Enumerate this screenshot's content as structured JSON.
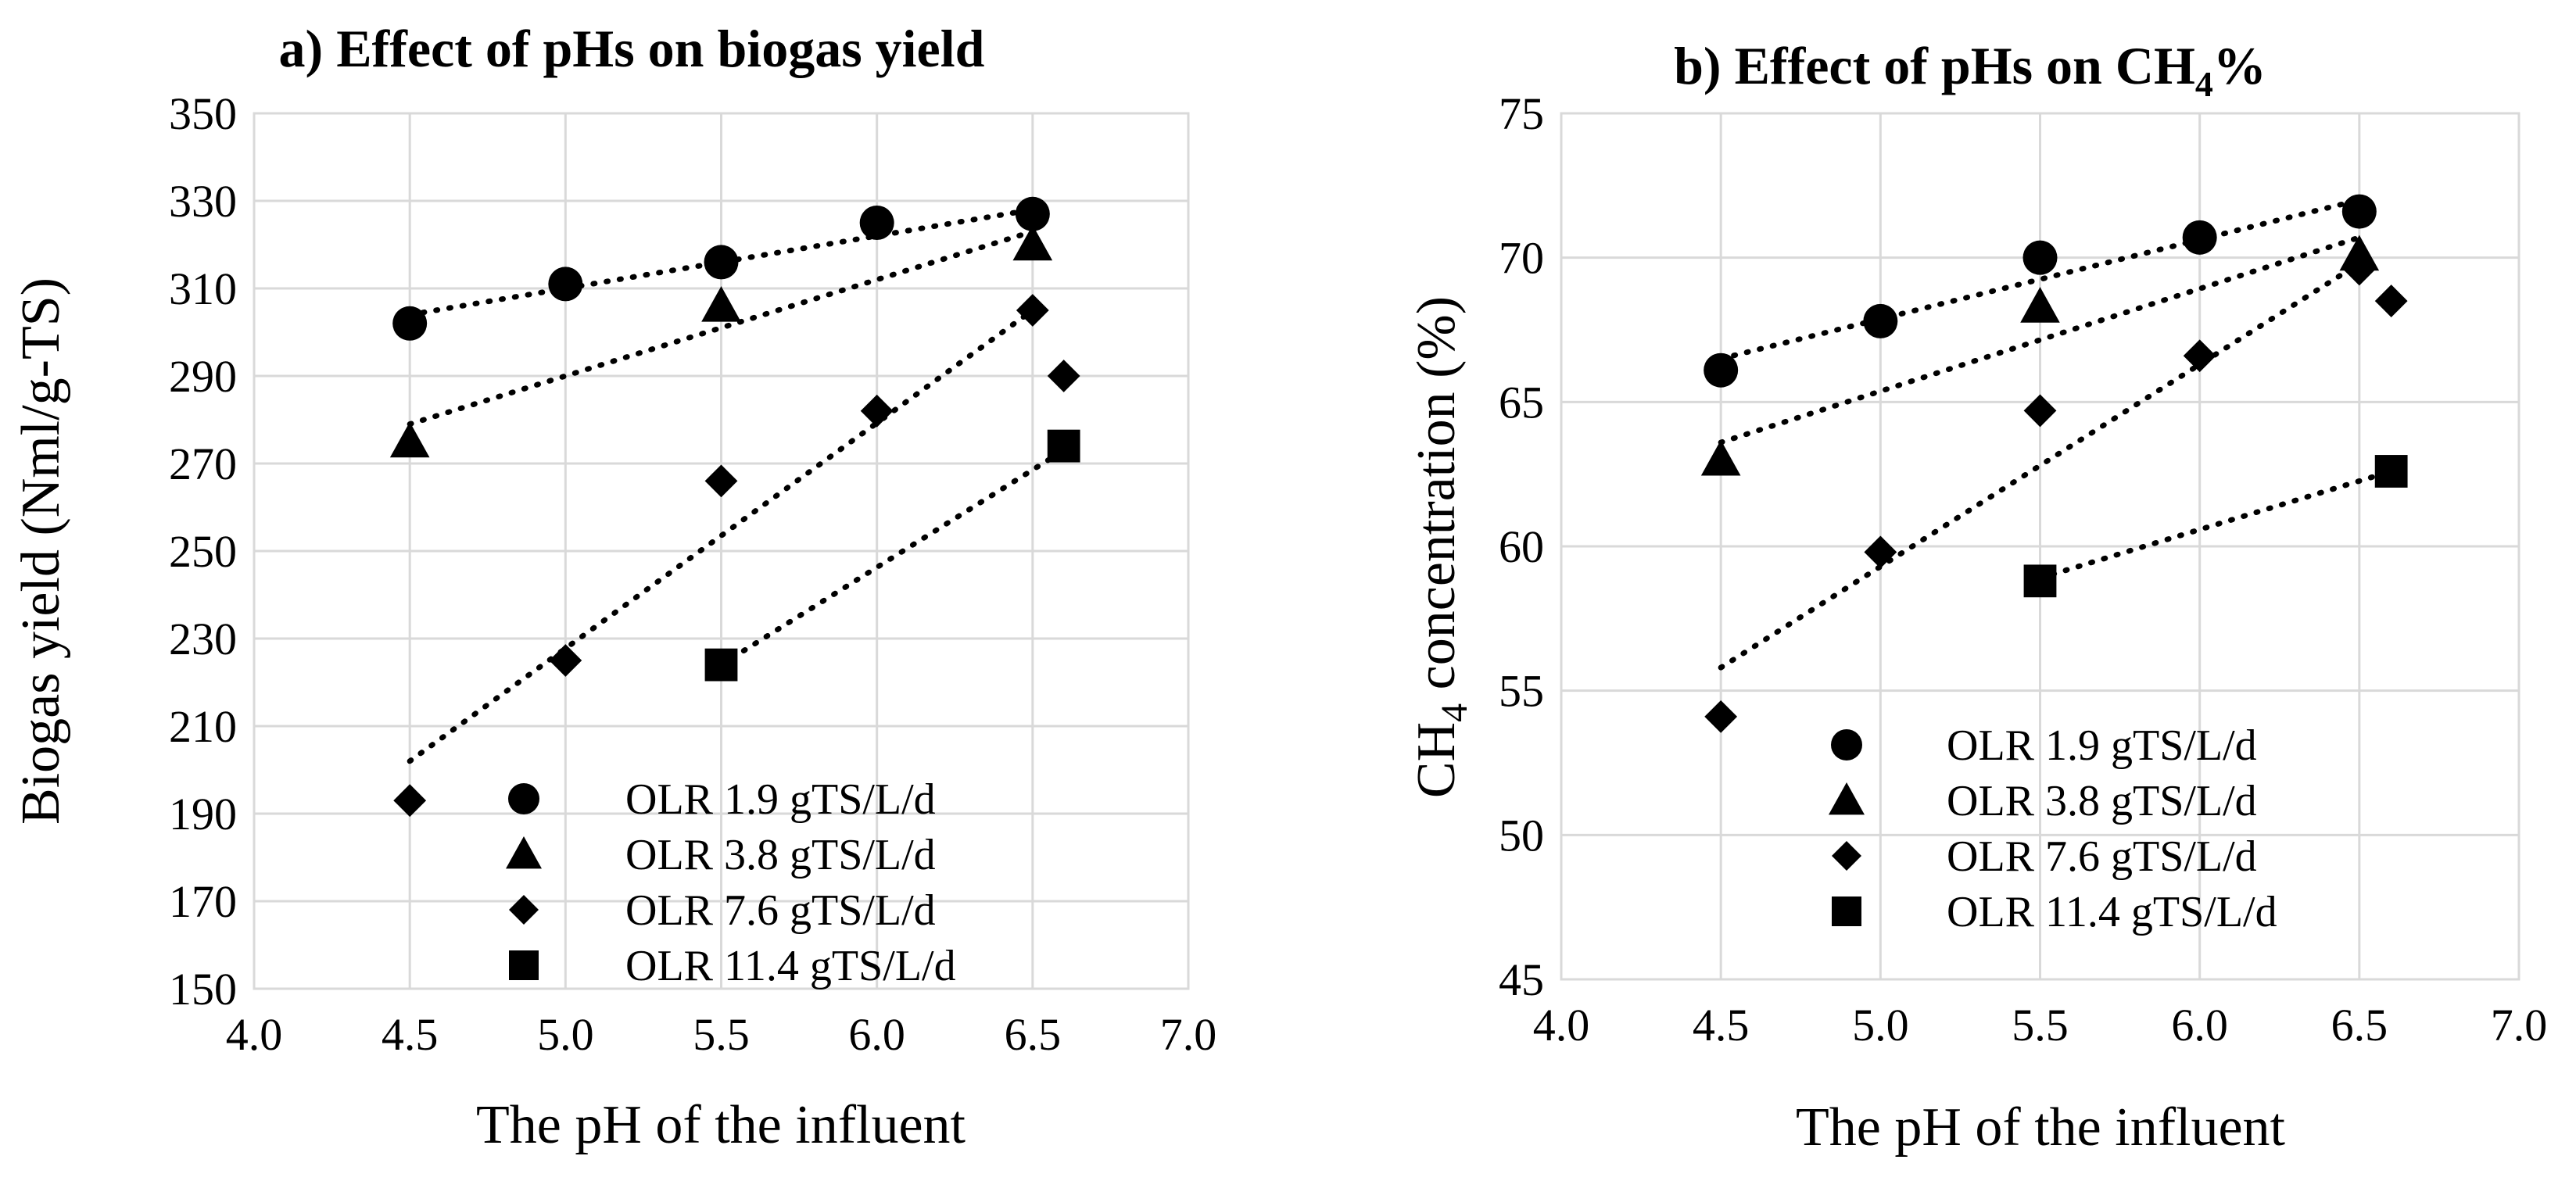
{
  "charts": [
    {
      "id": "a",
      "title_plain": "a) Effect of pHs on biogas yield",
      "xlabel": "The pH of the influent",
      "ylabel": "Biogas yield (Nml/g-TS)",
      "xlim": [
        4.0,
        7.0
      ],
      "ylim": [
        150,
        350
      ],
      "x_ticks": [
        4.0,
        4.5,
        5.0,
        5.5,
        6.0,
        6.5,
        7.0
      ],
      "x_tick_labels": [
        "4.0",
        "4.5",
        "5.0",
        "5.5",
        "6.0",
        "6.5",
        "7.0"
      ],
      "y_ticks": [
        150,
        170,
        190,
        210,
        230,
        250,
        270,
        290,
        310,
        330,
        350
      ],
      "y_tick_labels": [
        "150",
        "170",
        "190",
        "210",
        "230",
        "250",
        "270",
        "290",
        "310",
        "330",
        "350"
      ],
      "legend": [
        "OLR 1.9 gTS/L/d",
        "OLR 3.8 gTS/L/d",
        "OLR 7.6 gTS/L/d",
        "OLR 11.4 gTS/L/d"
      ]
    },
    {
      "id": "b",
      "title_prefix": "b) Effect of pHs on CH",
      "title_sub": "4",
      "title_suffix": "%",
      "xlabel": "The pH of the influent",
      "ylabel_prefix": "CH",
      "ylabel_sub": "4",
      "ylabel_suffix": " concentration (%)",
      "xlim": [
        4.0,
        7.0
      ],
      "ylim": [
        45,
        75
      ],
      "x_ticks": [
        4.0,
        4.5,
        5.0,
        5.5,
        6.0,
        6.5,
        7.0
      ],
      "x_tick_labels": [
        "4.0",
        "4.5",
        "5.0",
        "5.5",
        "6.0",
        "6.5",
        "7.0"
      ],
      "y_ticks": [
        45,
        50,
        55,
        60,
        65,
        70,
        75
      ],
      "y_tick_labels": [
        "45",
        "50",
        "55",
        "60",
        "65",
        "70",
        "75"
      ],
      "legend": [
        "OLR 1.9 gTS/L/d",
        "OLR 3.8 gTS/L/d",
        "OLR 7.6 gTS/L/d",
        "OLR 11.4 gTS/L/d"
      ]
    }
  ],
  "chart_data": [
    {
      "type": "scatter",
      "title": "a) Effect of pHs on biogas yield",
      "xlabel": "The pH of the influent",
      "ylabel": "Biogas yield (Nml/g-TS)",
      "xlim": [
        4.0,
        7.0
      ],
      "ylim": [
        150,
        350
      ],
      "grid": true,
      "legend_position": "bottom-right",
      "trendlines": "linear, dotted",
      "series": [
        {
          "name": "OLR 1.9 gTS/L/d",
          "marker": "circle",
          "x": [
            4.5,
            5.0,
            5.5,
            6.0,
            6.5
          ],
          "y": [
            302,
            311,
            316,
            325,
            327
          ],
          "trend": [
            [
              4.5,
              304
            ],
            [
              6.5,
              328
            ]
          ]
        },
        {
          "name": "OLR 3.8 gTS/L/d",
          "marker": "triangle",
          "x": [
            4.5,
            5.5,
            6.5
          ],
          "y": [
            275,
            306,
            320
          ],
          "trend": [
            [
              4.5,
              279
            ],
            [
              6.5,
              323
            ]
          ]
        },
        {
          "name": "OLR 7.6 gTS/L/d",
          "marker": "diamond",
          "x": [
            4.5,
            5.0,
            5.5,
            6.0,
            6.5,
            6.6
          ],
          "y": [
            193,
            225,
            266,
            282,
            305,
            290
          ],
          "trend": [
            [
              4.5,
              202
            ],
            [
              6.5,
              305
            ]
          ]
        },
        {
          "name": "OLR 11.4 gTS/L/d",
          "marker": "square",
          "x": [
            5.5,
            6.6
          ],
          "y": [
            224,
            274
          ],
          "trend": [
            [
              5.5,
              224
            ],
            [
              6.6,
              273
            ]
          ]
        }
      ]
    },
    {
      "type": "scatter",
      "title": "b) Effect of pHs on CH4%",
      "xlabel": "The pH of the influent",
      "ylabel": "CH4 concentration (%)",
      "xlim": [
        4.0,
        7.0
      ],
      "ylim": [
        45,
        75
      ],
      "grid": true,
      "legend_position": "bottom-right",
      "trendlines": "linear, dotted",
      "series": [
        {
          "name": "OLR 1.9 gTS/L/d",
          "marker": "circle",
          "x": [
            4.5,
            5.0,
            5.5,
            6.0,
            6.5
          ],
          "y": [
            66.1,
            67.8,
            70.0,
            70.7,
            71.6
          ],
          "trend": [
            [
              4.5,
              66.5
            ],
            [
              6.5,
              72.0
            ]
          ]
        },
        {
          "name": "OLR 3.8 gTS/L/d",
          "marker": "triangle",
          "x": [
            4.5,
            5.5,
            6.5
          ],
          "y": [
            63.0,
            68.3,
            70.1
          ],
          "trend": [
            [
              4.5,
              63.6
            ],
            [
              6.5,
              70.7
            ]
          ]
        },
        {
          "name": "OLR 7.6 gTS/L/d",
          "marker": "diamond",
          "x": [
            4.5,
            5.0,
            5.5,
            6.0,
            6.5,
            6.6
          ],
          "y": [
            54.1,
            59.8,
            64.7,
            66.6,
            69.6,
            68.5
          ],
          "trend": [
            [
              4.5,
              55.8
            ],
            [
              6.5,
              69.8
            ]
          ]
        },
        {
          "name": "OLR 11.4 gTS/L/d",
          "marker": "square",
          "x": [
            5.5,
            6.6
          ],
          "y": [
            58.8,
            62.6
          ],
          "trend": [
            [
              5.5,
              58.9
            ],
            [
              6.6,
              62.6
            ]
          ]
        }
      ]
    }
  ]
}
